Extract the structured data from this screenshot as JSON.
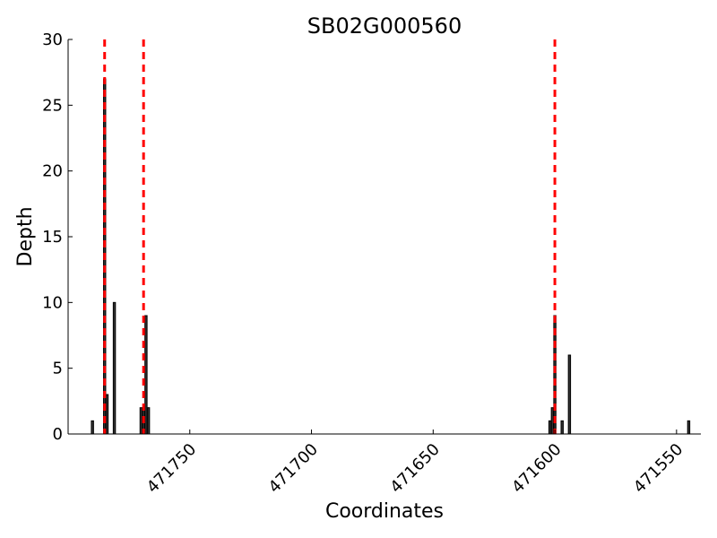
{
  "chart_data": {
    "type": "bar",
    "title": "SB02G000560",
    "xlabel": "Coordinates",
    "ylabel": "Depth",
    "xlim": [
      471800,
      471540
    ],
    "ylim": [
      0,
      30
    ],
    "x_ticks": [
      471750,
      471700,
      471650,
      471600,
      471550
    ],
    "y_ticks": [
      0,
      5,
      10,
      15,
      20,
      25,
      30
    ],
    "grid": false,
    "bars": [
      {
        "x": 471790,
        "y": 1
      },
      {
        "x": 471785,
        "y": 27
      },
      {
        "x": 471784,
        "y": 3
      },
      {
        "x": 471781,
        "y": 10
      },
      {
        "x": 471770,
        "y": 2
      },
      {
        "x": 471769,
        "y": 2
      },
      {
        "x": 471768,
        "y": 9
      },
      {
        "x": 471767,
        "y": 2
      },
      {
        "x": 471602,
        "y": 1
      },
      {
        "x": 471601,
        "y": 2
      },
      {
        "x": 471600,
        "y": 9
      },
      {
        "x": 471597,
        "y": 1
      },
      {
        "x": 471594,
        "y": 6
      },
      {
        "x": 471545,
        "y": 1
      }
    ],
    "markers": [
      471785,
      471769,
      471600
    ],
    "colors": {
      "bar_fill": "#333333",
      "bar_edge": "#000000",
      "marker": "#ff0000"
    }
  }
}
